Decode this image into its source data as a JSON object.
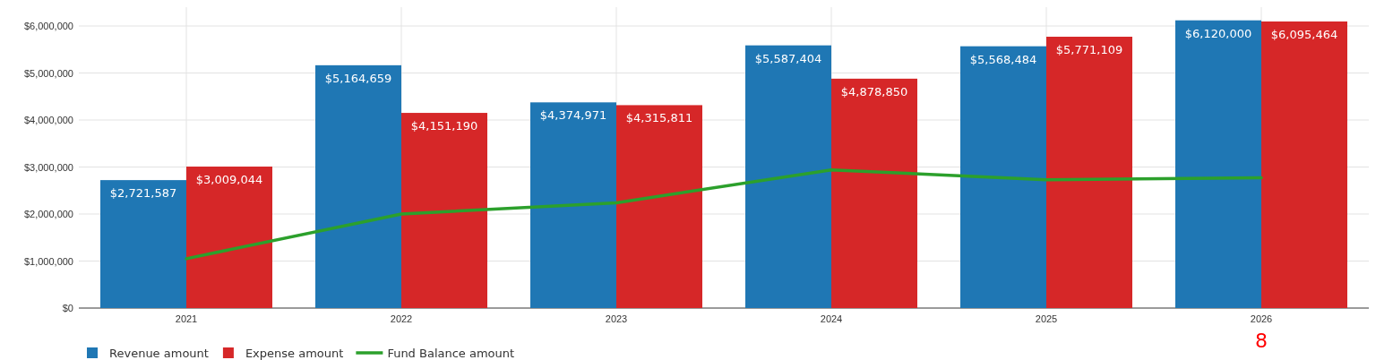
{
  "chart_data": {
    "type": "bar",
    "categories": [
      "2021",
      "2022",
      "2023",
      "2024",
      "2025",
      "2026"
    ],
    "ylim": [
      0,
      6400000
    ],
    "yticks": [
      {
        "value": 0,
        "label": "$0"
      },
      {
        "value": 1000000,
        "label": "$1,000,000"
      },
      {
        "value": 2000000,
        "label": "$2,000,000"
      },
      {
        "value": 3000000,
        "label": "$3,000,000"
      },
      {
        "value": 4000000,
        "label": "$4,000,000"
      },
      {
        "value": 5000000,
        "label": "$5,000,000"
      },
      {
        "value": 6000000,
        "label": "$6,000,000"
      }
    ],
    "grid": true,
    "legend": "bottom left",
    "series": [
      {
        "name": "Revenue amount",
        "color": "#1f77b4",
        "values": [
          2721587,
          5164659,
          4374971,
          5587404,
          5568484,
          6120000
        ],
        "value_labels": [
          "$2,721,587",
          "$5,164,659",
          "$4,374,971",
          "$5,587,404",
          "$5,568,484",
          "$6,120,000"
        ]
      },
      {
        "name": "Expense amount",
        "color": "#d62728",
        "values": [
          3009044,
          4151190,
          4315811,
          4878850,
          5771109,
          6095464
        ],
        "value_labels": [
          "$3,009,044",
          "$4,151,190",
          "$4,315,811",
          "$4,878,850",
          "$5,771,109",
          "$6,095,464"
        ]
      },
      {
        "name": "Fund Balance amount",
        "type": "line",
        "color": "#2ca02c",
        "values": [
          1050000,
          2000000,
          2240000,
          2940000,
          2730000,
          2770000
        ]
      }
    ],
    "annotations": [
      "8"
    ]
  }
}
